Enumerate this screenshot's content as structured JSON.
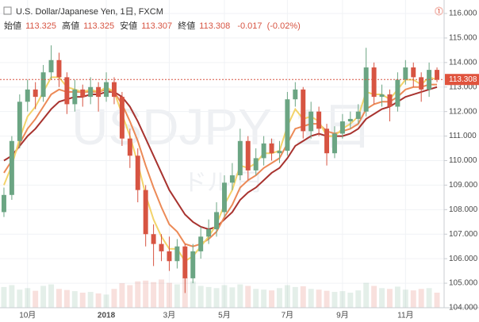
{
  "chart_data": {
    "type": "candlestick",
    "header": {
      "symbol": "U.S. Dollar/Japanese Yen, 1日, FXCM",
      "open_label": "始値",
      "open": 113.325,
      "high_label": "高値",
      "high": 113.325,
      "low_label": "安値",
      "low": 113.307,
      "close_label": "終値",
      "close": 113.308,
      "change": -0.017,
      "change_pct": {
        "value": -0.02,
        "label": "(-0.02%)"
      }
    },
    "watermark": "USDJPY, 1日",
    "watermark_sub": "ドル/円",
    "categories": [
      null,
      null,
      null,
      "10月",
      null,
      null,
      null,
      null,
      null,
      null,
      null,
      null,
      null,
      "2018",
      null,
      null,
      null,
      null,
      null,
      null,
      null,
      "3月",
      null,
      null,
      null,
      null,
      null,
      null,
      "5月",
      null,
      null,
      null,
      null,
      null,
      null,
      null,
      "7月",
      null,
      null,
      null,
      null,
      null,
      null,
      "9月",
      null,
      null,
      null,
      null,
      null,
      null,
      null,
      "11月",
      null,
      null,
      null,
      null
    ],
    "open": [
      107.9,
      108.6,
      110.8,
      112.4,
      112.9,
      112.6,
      113.6,
      114.1,
      113.4,
      112.3,
      112.9,
      112.6,
      113.0,
      112.6,
      113.2,
      112.6,
      110.9,
      110.2,
      108.8,
      107.0,
      106.6,
      106.3,
      105.9,
      106.5,
      105.2,
      106.3,
      106.9,
      107.2,
      107.9,
      109.1,
      109.4,
      110.8,
      109.6,
      110.1,
      110.7,
      110.3,
      110.4,
      112.5,
      112.9,
      111.2,
      112.0,
      111.3,
      110.3,
      111.1,
      111.6,
      111.7,
      112.0,
      113.8,
      112.6,
      112.7,
      112.2,
      113.3,
      113.8,
      113.4,
      112.9,
      113.7
    ],
    "high": [
      108.9,
      111.0,
      112.7,
      113.3,
      113.2,
      113.9,
      114.7,
      114.4,
      113.6,
      113.3,
      113.1,
      113.4,
      113.2,
      113.6,
      113.4,
      112.8,
      111.3,
      110.5,
      109.0,
      107.4,
      107.0,
      106.9,
      106.8,
      106.6,
      106.6,
      107.3,
      107.6,
      108.3,
      109.4,
      109.9,
      111.3,
      111.0,
      110.5,
      111.0,
      110.9,
      110.8,
      112.8,
      113.2,
      113.0,
      112.4,
      112.2,
      111.5,
      111.4,
      111.9,
      112.0,
      112.3,
      114.6,
      114.0,
      113.1,
      112.9,
      113.6,
      114.1,
      114.0,
      113.6,
      114.0,
      113.8
    ],
    "low": [
      107.7,
      108.4,
      110.5,
      112.0,
      112.1,
      112.4,
      113.3,
      113.0,
      111.9,
      112.0,
      112.2,
      112.3,
      112.0,
      112.4,
      112.3,
      110.6,
      109.7,
      108.3,
      106.5,
      105.7,
      105.9,
      105.5,
      105.6,
      104.6,
      105.0,
      106.0,
      106.6,
      106.9,
      107.7,
      108.8,
      109.2,
      109.2,
      109.4,
      109.8,
      110.0,
      109.9,
      110.2,
      112.2,
      110.9,
      110.9,
      111.0,
      109.8,
      110.1,
      110.9,
      111.3,
      111.5,
      111.8,
      112.3,
      112.2,
      111.6,
      112.0,
      113.1,
      113.0,
      112.4,
      112.6,
      113.2
    ],
    "close": [
      108.6,
      110.8,
      112.4,
      112.9,
      112.6,
      113.6,
      114.1,
      113.4,
      112.3,
      112.9,
      112.6,
      113.0,
      112.6,
      113.2,
      112.6,
      110.9,
      110.2,
      108.8,
      107.0,
      106.6,
      106.3,
      105.9,
      106.5,
      105.2,
      106.3,
      106.9,
      107.2,
      107.9,
      109.1,
      109.4,
      110.8,
      109.6,
      110.1,
      110.7,
      110.3,
      110.4,
      112.5,
      112.9,
      111.2,
      112.0,
      111.3,
      110.3,
      111.1,
      111.6,
      111.7,
      112.0,
      113.8,
      112.6,
      112.7,
      112.2,
      113.3,
      113.8,
      113.4,
      112.9,
      113.7,
      113.3
    ],
    "volume": [
      55,
      60,
      48,
      52,
      45,
      58,
      62,
      50,
      47,
      44,
      40,
      42,
      38,
      35,
      50,
      65,
      60,
      70,
      72,
      68,
      75,
      66,
      62,
      80,
      70,
      58,
      55,
      52,
      60,
      54,
      62,
      58,
      50,
      48,
      46,
      52,
      60,
      55,
      57,
      50,
      48,
      45,
      42,
      44,
      40,
      46,
      66,
      58,
      52,
      50,
      56,
      48,
      46,
      50,
      52,
      40
    ],
    "up_color": "#6ba583",
    "down_color": "#d75442",
    "series": [
      {
        "name": null,
        "color": "#f3d36a",
        "values": [
          109.0,
          109.8,
          110.9,
          111.8,
          112.2,
          112.8,
          113.4,
          113.4,
          113.0,
          112.9,
          112.8,
          112.9,
          112.8,
          113.0,
          112.8,
          111.9,
          111.0,
          109.9,
          108.6,
          107.6,
          106.9,
          106.4,
          106.4,
          105.9,
          106.1,
          106.5,
          106.9,
          107.4,
          108.2,
          108.8,
          109.8,
          109.7,
          109.9,
          110.3,
          110.3,
          110.4,
          111.4,
          112.1,
          111.7,
          111.8,
          111.6,
          111.0,
          111.0,
          111.3,
          111.5,
          111.8,
          112.8,
          112.7,
          112.7,
          112.5,
          112.9,
          113.3,
          113.3,
          113.1,
          113.4,
          113.3
        ]
      },
      {
        "name": null,
        "color": "#ec8a57",
        "values": [
          109.5,
          110.0,
          110.7,
          111.3,
          111.7,
          112.2,
          112.7,
          112.9,
          112.8,
          112.8,
          112.8,
          112.8,
          112.8,
          112.9,
          112.8,
          112.3,
          111.6,
          110.8,
          109.8,
          108.9,
          108.1,
          107.4,
          107.1,
          106.6,
          106.5,
          106.6,
          106.8,
          107.1,
          107.7,
          108.2,
          108.9,
          109.2,
          109.4,
          109.7,
          109.9,
          110.1,
          110.7,
          111.3,
          111.4,
          111.5,
          111.5,
          111.2,
          111.1,
          111.2,
          111.3,
          111.5,
          112.1,
          112.3,
          112.4,
          112.4,
          112.6,
          112.9,
          113.0,
          113.0,
          113.1,
          113.1
        ]
      },
      {
        "name": null,
        "color": "#a8332f",
        "values": [
          110.0,
          110.2,
          110.6,
          111.0,
          111.3,
          111.7,
          112.1,
          112.4,
          112.5,
          112.6,
          112.6,
          112.7,
          112.7,
          112.8,
          112.8,
          112.6,
          112.2,
          111.6,
          110.9,
          110.2,
          109.5,
          108.8,
          108.3,
          107.8,
          107.5,
          107.3,
          107.2,
          107.3,
          107.6,
          107.9,
          108.4,
          108.7,
          108.9,
          109.2,
          109.5,
          109.7,
          110.1,
          110.6,
          110.8,
          111.0,
          111.1,
          111.0,
          111.0,
          111.0,
          111.1,
          111.3,
          111.7,
          111.9,
          112.1,
          112.2,
          112.4,
          112.6,
          112.7,
          112.8,
          112.9,
          113.0
        ]
      }
    ],
    "last_price": 113.308,
    "ylim": [
      104,
      116.55
    ],
    "yticks": [
      {
        "value": 104,
        "label": "104.000"
      },
      {
        "value": 105,
        "label": "105.000"
      },
      {
        "value": 106,
        "label": "106.000"
      },
      {
        "value": 107,
        "label": "107.000"
      },
      {
        "value": 108,
        "label": "108.000"
      },
      {
        "value": 109,
        "label": "109.000"
      },
      {
        "value": 110,
        "label": "110.000"
      },
      {
        "value": 111,
        "label": "111.000"
      },
      {
        "value": 112,
        "label": "112.000"
      },
      {
        "value": 113,
        "label": "113.000"
      },
      {
        "value": 114,
        "label": "114.000"
      },
      {
        "value": 115,
        "label": "115.000"
      },
      {
        "value": 116,
        "label": "116.000"
      }
    ]
  }
}
